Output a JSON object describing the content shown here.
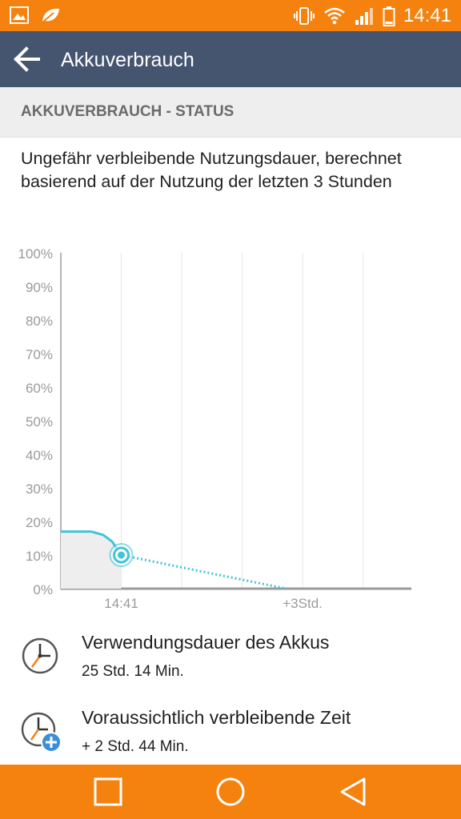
{
  "status_bar": {
    "time": "14:41",
    "left_icons": [
      "gallery-icon",
      "leaf-icon"
    ],
    "right_icons": [
      "vibrate-icon",
      "wifi-icon",
      "signal-icon",
      "battery-icon"
    ]
  },
  "app_bar": {
    "title": "Akkuverbrauch",
    "back_icon": "arrow-back-icon"
  },
  "section": {
    "header": "AKKUVERBRAUCH - STATUS",
    "description": "Ungefähr verbleibende Nutzungsdauer, berechnet basierend auf der Nutzung der letzten 3 Stunden"
  },
  "chart_data": {
    "type": "line",
    "title": "",
    "xlabel": "",
    "ylabel": "",
    "y_ticks": [
      "100%",
      "90%",
      "80%",
      "70%",
      "60%",
      "50%",
      "40%",
      "30%",
      "20%",
      "10%",
      "0%"
    ],
    "x_ticks": [
      "14:41",
      "+3Std."
    ],
    "ylim": [
      0,
      100
    ],
    "grid": true,
    "series": [
      {
        "style": "solid",
        "color": "#40c4d8",
        "x_hours": [
          -1.0,
          -0.5,
          -0.3,
          -0.15,
          0.0
        ],
        "y": [
          17,
          17,
          16,
          14,
          10
        ]
      },
      {
        "style": "dotted",
        "color": "#40c4d8",
        "x_hours": [
          0.0,
          2.73
        ],
        "y": [
          10,
          0
        ]
      }
    ],
    "current_marker": {
      "x_hours": 0.0,
      "y": 10
    }
  },
  "info": [
    {
      "icon": "clock-icon",
      "label": "Verwendungsdauer des Akkus",
      "value": "25 Std. 14 Min."
    },
    {
      "icon": "clock-plus-icon",
      "label": "Voraussichtlich verbleibende Zeit",
      "value": "+ 2 Std. 44 Min."
    }
  ],
  "nav": [
    "recents-button",
    "home-button",
    "back-button"
  ],
  "colors": {
    "status_bar": "#f5820f",
    "app_bar": "#455570",
    "accent": "#40c4d8",
    "nav_bar": "#f5820f"
  }
}
